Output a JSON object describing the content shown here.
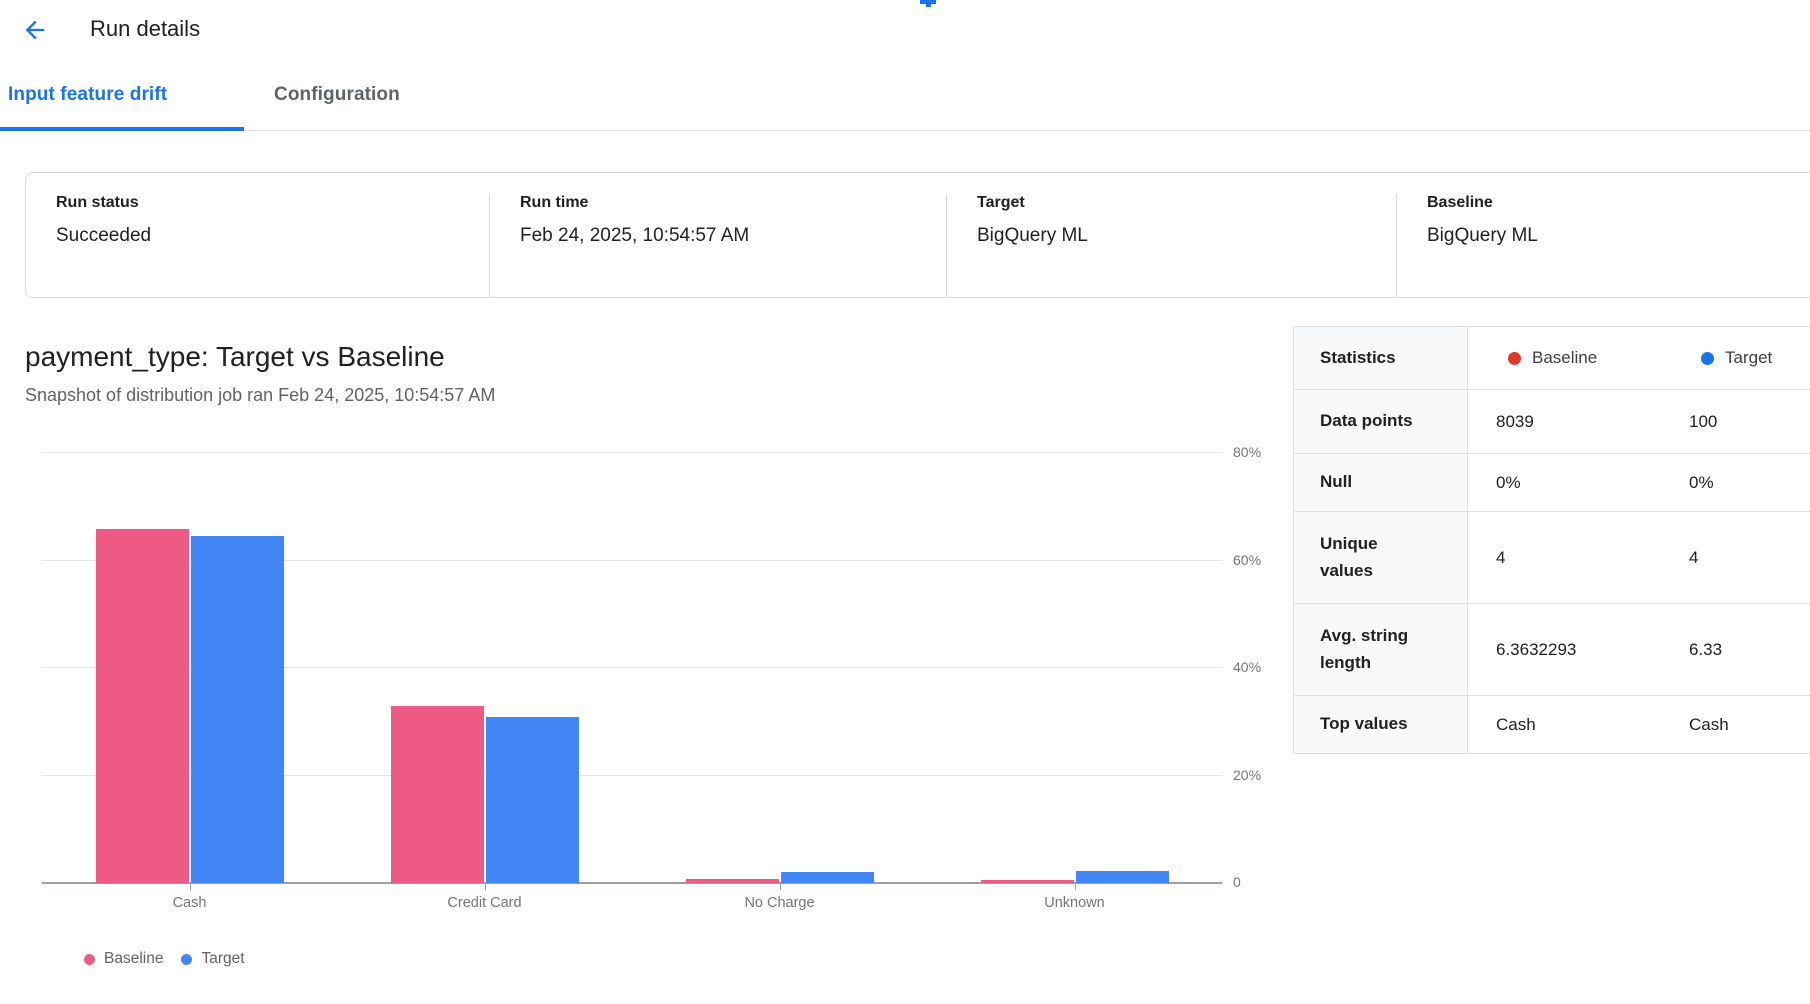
{
  "header": {
    "title": "Run details",
    "back_icon": "arrow-left"
  },
  "tabs": [
    {
      "label": "Input feature drift",
      "active": true
    },
    {
      "label": "Configuration",
      "active": false
    }
  ],
  "run_info": [
    {
      "label": "Run status",
      "value": "Succeeded"
    },
    {
      "label": "Run time",
      "value": "Feb 24, 2025, 10:54:57 AM"
    },
    {
      "label": "Target",
      "value": "BigQuery ML"
    },
    {
      "label": "Baseline",
      "value": "BigQuery ML"
    }
  ],
  "chart": {
    "title": "payment_type: Target vs Baseline",
    "subtitle": "Snapshot of distribution job ran Feb 24, 2025, 10:54:57 AM"
  },
  "chart_data": {
    "type": "bar",
    "categories": [
      "Cash",
      "Credit Card",
      "No Charge",
      "Unknown"
    ],
    "series": [
      {
        "name": "Baseline",
        "color": "#EC5A85",
        "values": [
          65.9,
          32.9,
          0.8,
          0.5
        ]
      },
      {
        "name": "Target",
        "color": "#4285F4",
        "values": [
          64.6,
          30.9,
          2.0,
          2.2
        ]
      }
    ],
    "title": "payment_type: Target vs Baseline",
    "xlabel": "",
    "ylabel": "",
    "y_ticks": [
      "80%",
      "60%",
      "40%",
      "20%",
      "0"
    ],
    "y_tick_values": [
      80,
      60,
      40,
      20,
      0
    ],
    "ylim": [
      0,
      83.7
    ],
    "grid": true,
    "y_axis_side": "right",
    "legend_position": "bottom"
  },
  "stats_table": {
    "header": {
      "label": "Statistics",
      "columns": [
        {
          "label": "Baseline",
          "dot_color": "#DB3A2C"
        },
        {
          "label": "Target",
          "dot_color": "#1A73E8"
        }
      ]
    },
    "rows": [
      {
        "label": "Data points",
        "baseline": "8039",
        "target": "100"
      },
      {
        "label": "Null",
        "baseline": "0%",
        "target": "0%"
      },
      {
        "label": "Unique values",
        "baseline": "4",
        "target": "4"
      },
      {
        "label": "Avg. string length",
        "baseline": "6.3632293",
        "target": "6.33"
      },
      {
        "label": "Top values",
        "baseline": "Cash",
        "target": "Cash"
      }
    ]
  },
  "colors": {
    "accent_blue": "#1A73E8",
    "baseline_pink": "#EC5A85",
    "target_blue": "#4285F4"
  }
}
